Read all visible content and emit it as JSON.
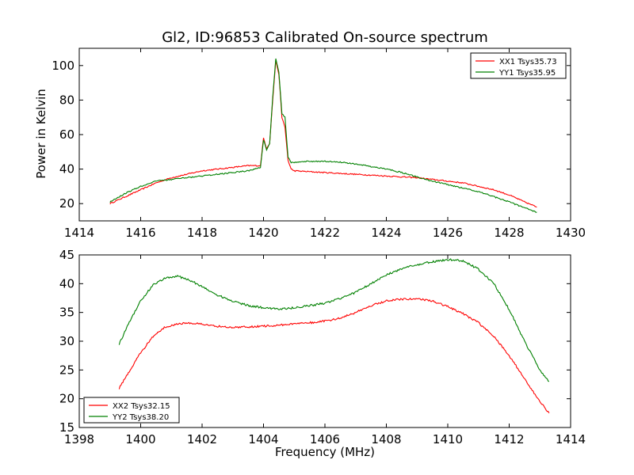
{
  "title": "Gl2, ID:96853 Calibrated On-source spectrum",
  "colors": {
    "xx": "#ff0000",
    "yy": "#008000"
  },
  "chart_data": [
    {
      "type": "line",
      "ylabel": "Power in Kelvin",
      "xlabel": "",
      "xlim": [
        1414,
        1430
      ],
      "ylim": [
        10,
        110
      ],
      "xticks": [
        1414,
        1416,
        1418,
        1420,
        1422,
        1424,
        1426,
        1428,
        1430
      ],
      "yticks": [
        20,
        40,
        60,
        80,
        100
      ],
      "grid": false,
      "legend_position": "top-right",
      "series": [
        {
          "name": "XX1 Tsys35.73",
          "color": "#ff0000",
          "x": [
            1415.0,
            1415.5,
            1416.0,
            1416.5,
            1417.0,
            1417.5,
            1418.0,
            1418.5,
            1419.0,
            1419.5,
            1419.9,
            1420.0,
            1420.1,
            1420.2,
            1420.3,
            1420.4,
            1420.5,
            1420.6,
            1420.7,
            1420.8,
            1420.9,
            1421.0,
            1421.5,
            1422.0,
            1422.5,
            1423.0,
            1423.5,
            1424.0,
            1424.5,
            1425.0,
            1425.5,
            1426.0,
            1426.5,
            1427.0,
            1427.5,
            1428.0,
            1428.5,
            1428.9
          ],
          "y": [
            20,
            24,
            28,
            32,
            35,
            37,
            39,
            40,
            41,
            42,
            42,
            58,
            52,
            55,
            80,
            103,
            95,
            70,
            64,
            45,
            40,
            39,
            38.5,
            38,
            37.5,
            37,
            36.5,
            36,
            35.5,
            35,
            34,
            33,
            32,
            30,
            28,
            25,
            21,
            18
          ]
        },
        {
          "name": "YY1 Tsys35.95",
          "color": "#008000",
          "x": [
            1415.0,
            1415.5,
            1416.0,
            1416.5,
            1417.0,
            1417.5,
            1418.0,
            1418.5,
            1419.0,
            1419.5,
            1419.9,
            1420.0,
            1420.1,
            1420.2,
            1420.3,
            1420.4,
            1420.5,
            1420.6,
            1420.7,
            1420.8,
            1420.9,
            1421.0,
            1421.5,
            1422.0,
            1422.5,
            1423.0,
            1423.5,
            1424.0,
            1424.5,
            1425.0,
            1425.5,
            1426.0,
            1426.5,
            1427.0,
            1427.5,
            1428.0,
            1428.5,
            1428.9
          ],
          "y": [
            21,
            26,
            30,
            33,
            34,
            35,
            36,
            37,
            38,
            39,
            41,
            57,
            51,
            55,
            82,
            104,
            96,
            72,
            70,
            47,
            44,
            44,
            44.5,
            44.5,
            44,
            43,
            41.5,
            40,
            38,
            35.5,
            33,
            31,
            29,
            27,
            24,
            21,
            17.5,
            15
          ]
        }
      ]
    },
    {
      "type": "line",
      "ylabel": "",
      "xlabel": "Frequency (MHz)",
      "xlim": [
        1398,
        1414
      ],
      "ylim": [
        15,
        45
      ],
      "xticks": [
        1398,
        1400,
        1402,
        1404,
        1406,
        1408,
        1410,
        1412,
        1414
      ],
      "yticks": [
        15,
        20,
        25,
        30,
        35,
        40,
        45
      ],
      "grid": false,
      "legend_position": "bottom-left",
      "series": [
        {
          "name": "XX2 Tsys32.15",
          "color": "#ff0000",
          "x": [
            1399.3,
            1399.6,
            1400.0,
            1400.4,
            1400.8,
            1401.2,
            1401.6,
            1402.0,
            1402.5,
            1403.0,
            1403.5,
            1404.0,
            1404.5,
            1405.0,
            1405.5,
            1406.0,
            1406.5,
            1407.0,
            1407.5,
            1408.0,
            1408.5,
            1409.0,
            1409.5,
            1410.0,
            1410.5,
            1411.0,
            1411.5,
            1412.0,
            1412.5,
            1413.0,
            1413.3
          ],
          "y": [
            21.8,
            24.5,
            28.0,
            30.8,
            32.5,
            33.0,
            33.2,
            33.0,
            32.6,
            32.4,
            32.5,
            32.6,
            32.8,
            33.0,
            33.2,
            33.5,
            34.0,
            35.0,
            36.2,
            37.0,
            37.3,
            37.4,
            37.0,
            36.0,
            34.8,
            33.2,
            30.8,
            27.5,
            23.5,
            19.5,
            17.5
          ]
        },
        {
          "name": "YY2 Tsys38.20",
          "color": "#008000",
          "x": [
            1399.3,
            1399.6,
            1400.0,
            1400.4,
            1400.8,
            1401.2,
            1401.6,
            1402.0,
            1402.5,
            1403.0,
            1403.5,
            1404.0,
            1404.5,
            1405.0,
            1405.5,
            1406.0,
            1406.5,
            1407.0,
            1407.5,
            1408.0,
            1408.5,
            1409.0,
            1409.5,
            1410.0,
            1410.5,
            1411.0,
            1411.5,
            1412.0,
            1412.5,
            1413.0,
            1413.3
          ],
          "y": [
            29.5,
            33.0,
            37.0,
            39.8,
            41.0,
            41.3,
            40.6,
            39.5,
            38.0,
            37.0,
            36.2,
            35.8,
            35.6,
            35.8,
            36.2,
            36.6,
            37.4,
            38.5,
            40.0,
            41.5,
            42.6,
            43.3,
            43.8,
            44.2,
            44.0,
            42.5,
            40.0,
            35.5,
            30.0,
            25.0,
            23.0
          ]
        }
      ]
    }
  ]
}
